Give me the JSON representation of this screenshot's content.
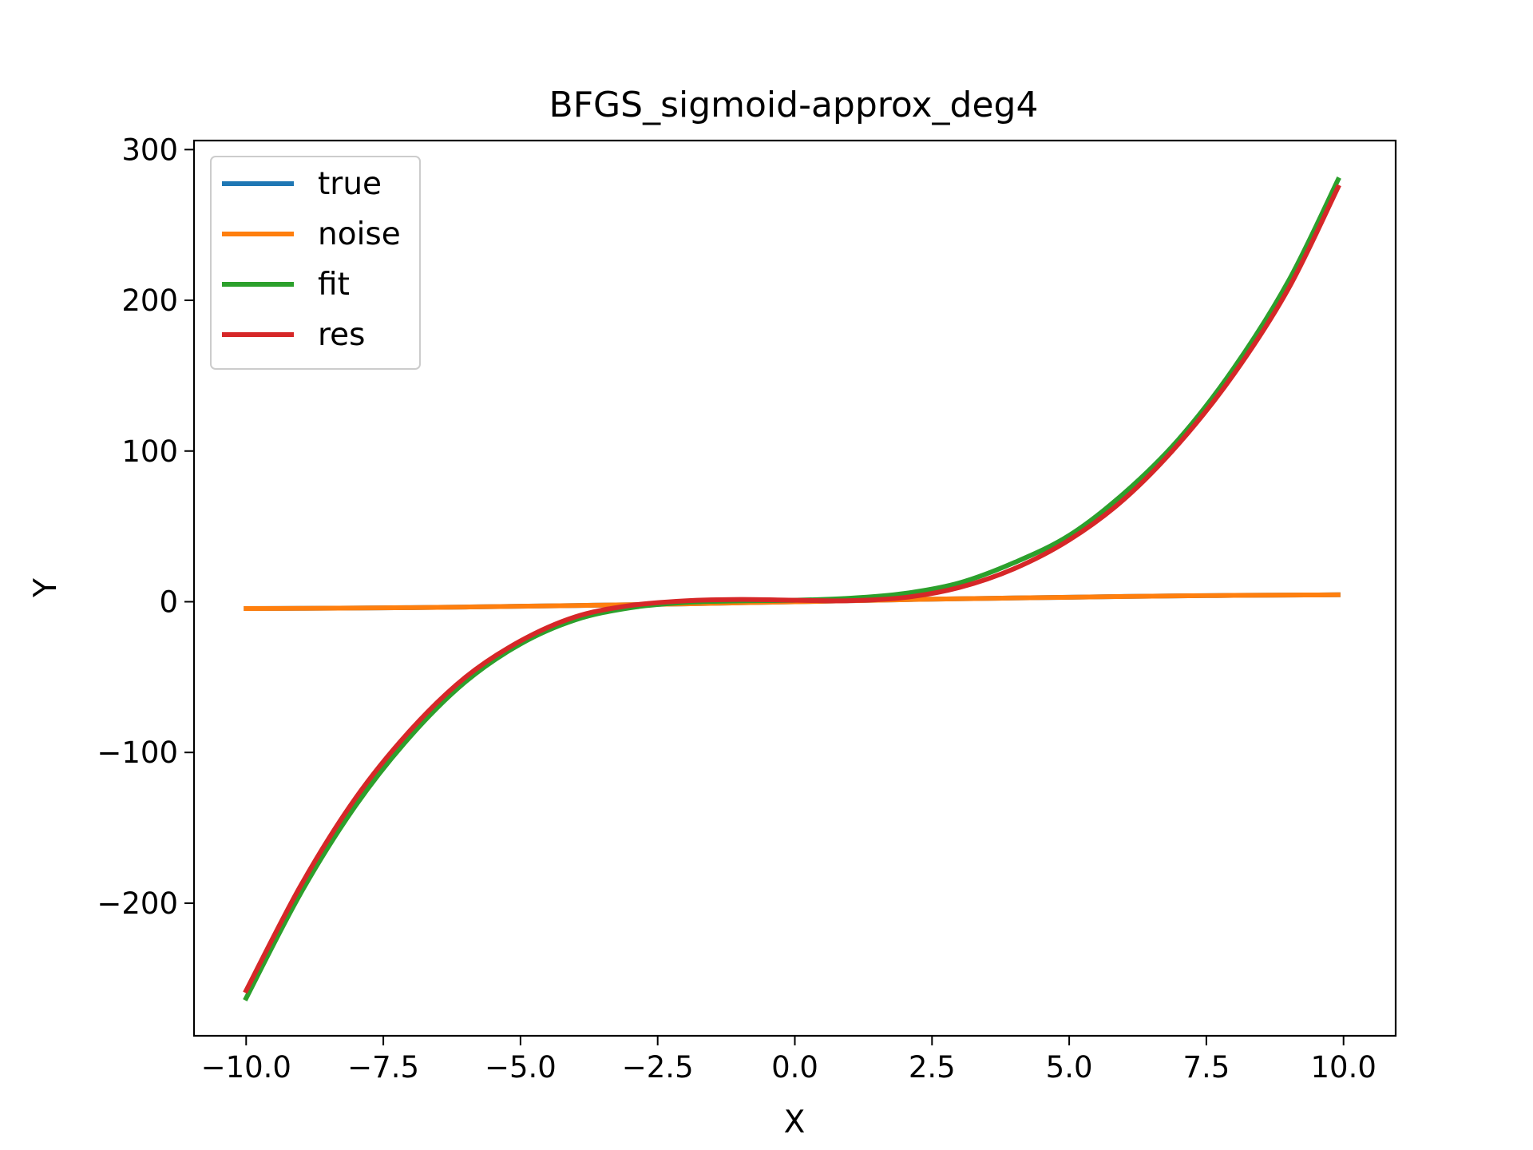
{
  "chart_data": {
    "type": "line",
    "title": "BFGS_sigmoid-approx_deg4",
    "xlabel": "X",
    "ylabel": "Y",
    "xlim": [
      -10.95,
      10.95
    ],
    "ylim": [
      -288,
      306
    ],
    "grid": false,
    "legend_position": "upper-left",
    "x_ticks": [
      "−10.0",
      "−7.5",
      "−5.0",
      "−2.5",
      "0.0",
      "2.5",
      "5.0",
      "7.5",
      "10.0"
    ],
    "x_tick_values": [
      -10,
      -7.5,
      -5,
      -2.5,
      0,
      2.5,
      5,
      7.5,
      10
    ],
    "y_ticks": [
      "−200",
      "−100",
      "0",
      "100",
      "200",
      "300"
    ],
    "y_tick_values": [
      -200,
      -100,
      0,
      100,
      200,
      300
    ],
    "x": [
      -10,
      -9,
      -8,
      -7,
      -6,
      -5,
      -4,
      -3,
      -2,
      -1,
      0,
      1,
      2,
      3,
      4,
      5,
      6,
      7,
      8,
      9,
      9.9
    ],
    "series": [
      {
        "name": "true",
        "color": "#1f77b4",
        "values": [
          -4.5,
          -4.4,
          -4.2,
          -3.9,
          -3.5,
          -3.0,
          -2.5,
          -2.0,
          -1.4,
          -0.7,
          0.0,
          0.7,
          1.4,
          2.0,
          2.5,
          3.0,
          3.5,
          3.9,
          4.2,
          4.4,
          4.6
        ]
      },
      {
        "name": "noise",
        "color": "#ff7f0e",
        "values": [
          -4.5,
          -4.4,
          -4.2,
          -3.9,
          -3.5,
          -3.0,
          -2.5,
          -2.0,
          -1.4,
          -0.7,
          0.0,
          0.7,
          1.4,
          2.0,
          2.5,
          3.0,
          3.5,
          3.9,
          4.2,
          4.4,
          4.6
        ]
      },
      {
        "name": "fit",
        "color": "#2ca02c",
        "values": [
          -263,
          -193,
          -135,
          -89,
          -53,
          -28,
          -12,
          -4,
          -0.5,
          0.6,
          1,
          2.3,
          5.5,
          12.5,
          26,
          44,
          72,
          108,
          155,
          213,
          280
        ]
      },
      {
        "name": "res",
        "color": "#d62728",
        "values": [
          -258,
          -188,
          -130,
          -85,
          -50,
          -26,
          -10,
          -2.5,
          0.6,
          1.5,
          1,
          0.7,
          2.8,
          9.5,
          22,
          41,
          68,
          105,
          151,
          208,
          275
        ]
      }
    ]
  }
}
